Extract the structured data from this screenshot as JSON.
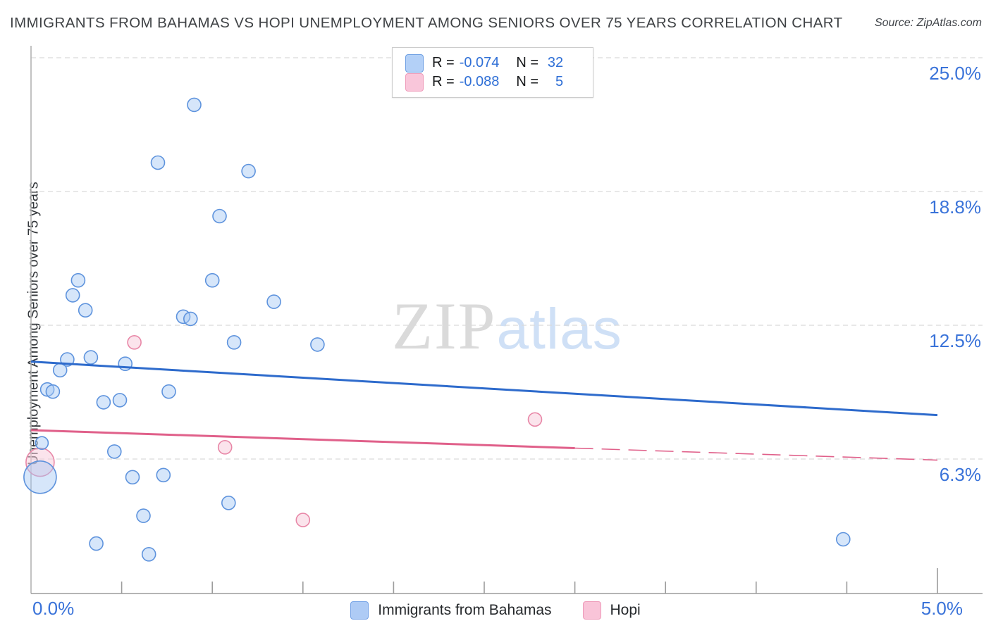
{
  "title": "IMMIGRANTS FROM BAHAMAS VS HOPI UNEMPLOYMENT AMONG SENIORS OVER 75 YEARS CORRELATION CHART",
  "source": "Source: ZipAtlas.com",
  "watermark": {
    "zip": "ZIP",
    "atlas": "atlas"
  },
  "y_axis_label": "Unemployment Among Seniors over 75 years",
  "stats_legend": {
    "rows": [
      {
        "series": "Immigrants from Bahamas",
        "r_label": "R =",
        "r_value": "-0.074",
        "n_label": "N =",
        "n_value": "32"
      },
      {
        "series": "Hopi",
        "r_label": "R =",
        "r_value": "-0.088",
        "n_label": "N =",
        "n_value": "5"
      }
    ]
  },
  "bottom_legend": {
    "items": [
      {
        "label": "Immigrants from Bahamas",
        "color": "#aecbf5"
      },
      {
        "label": "Hopi",
        "color": "#f9c4d8"
      }
    ]
  },
  "axis": {
    "x_min_label": "0.0%",
    "x_max_label": "5.0%",
    "y_gridlines": [
      {
        "value": 25.0,
        "label": "25.0%"
      },
      {
        "value": 18.75,
        "label": "18.8%"
      },
      {
        "value": 12.5,
        "label": "12.5%"
      },
      {
        "value": 6.25,
        "label": "6.3%"
      }
    ],
    "x_tick_min": 0.5,
    "x_tick_max": 5.0,
    "x_tick_step": 0.5
  },
  "chart_data": {
    "type": "scatter",
    "title": "Immigrants from Bahamas vs Hopi Unemployment Among Seniors over 75 years",
    "xlabel": "Immigrants from Bahamas (%)",
    "ylabel": "Unemployment Among Seniors over 75 years (%)",
    "xlim": [
      0,
      5
    ],
    "ylim": [
      0,
      25.5
    ],
    "grid": "horizontal-dashed",
    "legend_position": "bottom-center",
    "series": [
      {
        "name": "Immigrants from Bahamas",
        "r": -0.074,
        "n": 32,
        "fill": "rgba(164,199,243,0.45)",
        "stroke": "#5e93dd",
        "points_xyr": [
          [
            0.9,
            22.8,
            9.5
          ],
          [
            0.7,
            20.1,
            9.5
          ],
          [
            1.2,
            19.7,
            9.5
          ],
          [
            1.04,
            17.6,
            9.5
          ],
          [
            1.0,
            14.6,
            9.5
          ],
          [
            0.26,
            14.6,
            9.5
          ],
          [
            0.23,
            13.9,
            9.5
          ],
          [
            1.34,
            13.6,
            9.5
          ],
          [
            0.3,
            13.2,
            9.5
          ],
          [
            0.84,
            12.9,
            9.5
          ],
          [
            0.88,
            12.8,
            9.5
          ],
          [
            1.12,
            11.7,
            9.5
          ],
          [
            1.58,
            11.6,
            9.5
          ],
          [
            0.33,
            11.0,
            9.5
          ],
          [
            0.2,
            10.9,
            9.5
          ],
          [
            0.52,
            10.7,
            9.5
          ],
          [
            0.16,
            10.4,
            9.5
          ],
          [
            0.09,
            9.5,
            9.5
          ],
          [
            0.12,
            9.4,
            9.5
          ],
          [
            0.76,
            9.4,
            9.5
          ],
          [
            0.4,
            8.9,
            9.5
          ],
          [
            0.49,
            9.0,
            9.5
          ],
          [
            0.06,
            7.0,
            9.0
          ],
          [
            0.05,
            5.4,
            23.0
          ],
          [
            0.46,
            6.6,
            9.5
          ],
          [
            0.56,
            5.4,
            9.5
          ],
          [
            0.73,
            5.5,
            9.5
          ],
          [
            1.09,
            4.2,
            9.5
          ],
          [
            0.62,
            3.6,
            9.5
          ],
          [
            0.36,
            2.3,
            9.5
          ],
          [
            0.65,
            1.8,
            9.5
          ],
          [
            4.48,
            2.5,
            9.5
          ]
        ]
      },
      {
        "name": "Hopi",
        "r": -0.088,
        "n": 5,
        "fill": "rgba(248,205,221,0.55)",
        "stroke": "#e887a7",
        "points_xyr": [
          [
            0.05,
            6.1,
            20.0
          ],
          [
            0.57,
            11.7,
            9.5
          ],
          [
            1.07,
            6.8,
            9.5
          ],
          [
            2.78,
            8.1,
            9.5
          ],
          [
            1.5,
            3.4,
            9.5
          ]
        ]
      }
    ],
    "trendlines": [
      {
        "series": "Immigrants from Bahamas",
        "color": "#2e6bcc",
        "x0": 0,
        "y0": 10.8,
        "x1": 5,
        "y1": 8.3
      },
      {
        "series": "Hopi",
        "color": "#e0608a",
        "x0": 0,
        "y0": 7.6,
        "x1": 5,
        "y1": 6.2,
        "solid_until_x": 3.0
      }
    ]
  }
}
